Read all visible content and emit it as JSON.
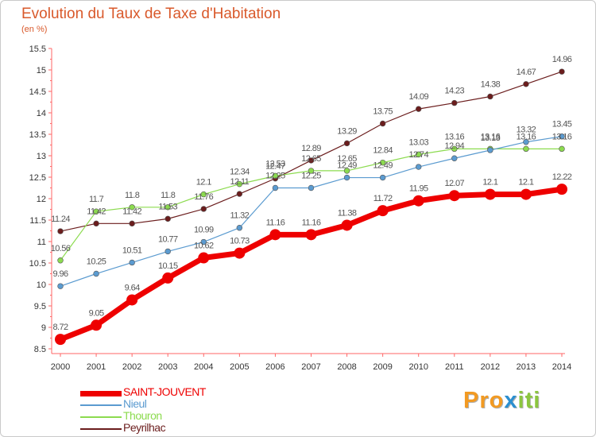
{
  "header": {
    "title": "Evolution du Taux de Taxe d'Habitation",
    "unit": "(en %)"
  },
  "logo": {
    "letters": [
      "P",
      "r",
      "o",
      "x",
      "i",
      "t",
      "i"
    ],
    "colors": [
      "#f29a22",
      "#f29a22",
      "#f29a22",
      "#2b8fd0",
      "#8cc63f",
      "#8cc63f",
      "#8cc63f"
    ]
  },
  "chart_data": {
    "type": "line",
    "title": "Evolution du Taux de Taxe d'Habitation",
    "ylabel": "(en %)",
    "xlabel": "",
    "x": [
      "2000",
      "2001",
      "2002",
      "2003",
      "2004",
      "2005",
      "2006",
      "2007",
      "2008",
      "2009",
      "2010",
      "2011",
      "2012",
      "2013",
      "2014"
    ],
    "ylim": [
      8.5,
      15.5
    ],
    "yticks": [
      "8.5",
      "9",
      "9.5",
      "10",
      "10.5",
      "11",
      "11.5",
      "12",
      "12.5",
      "13",
      "13.5",
      "14",
      "14.5",
      "15",
      "15.5"
    ],
    "grid": false,
    "legend": "bottom-left",
    "series": [
      {
        "name": "Peyrilhac",
        "color": "#6b1d1d",
        "width": 1.2,
        "values": [
          11.24,
          11.42,
          11.42,
          11.53,
          11.76,
          12.11,
          12.47,
          12.89,
          13.29,
          13.75,
          14.09,
          14.23,
          14.38,
          14.67,
          14.96
        ],
        "labels": [
          "11.24",
          "11.42",
          "11.42",
          "11.53",
          "11.76",
          "12.11",
          "12.47",
          "12.89",
          "13.29",
          "13.75",
          "14.09",
          "14.23",
          "14.38",
          "14.67",
          "14.96"
        ]
      },
      {
        "name": "Thouron",
        "color": "#8cdb4f",
        "width": 1.2,
        "values": [
          10.56,
          11.7,
          11.8,
          11.8,
          12.1,
          12.34,
          12.53,
          12.65,
          12.65,
          12.84,
          13.03,
          13.16,
          13.16,
          13.16,
          13.16
        ],
        "labels": [
          "10.56",
          "11.7",
          "11.8",
          "11.8",
          "12.1",
          "12.34",
          "12.53",
          "12.65",
          "12.65",
          "12.84",
          "13.03",
          "13.16",
          "13.16",
          "13.16",
          "13.16"
        ]
      },
      {
        "name": "Nieul",
        "color": "#5b9bd0",
        "width": 1.2,
        "values": [
          9.96,
          10.25,
          10.51,
          10.77,
          10.99,
          11.32,
          12.25,
          12.25,
          12.49,
          12.49,
          12.74,
          12.94,
          13.13,
          13.32,
          13.45
        ],
        "labels": [
          "9.96",
          "10.25",
          "10.51",
          "10.77",
          "10.99",
          "11.32",
          "12.25",
          "12.25",
          "12.49",
          "12.49",
          "12.74",
          "12.94",
          "13.13",
          "13.32",
          "13.45"
        ]
      },
      {
        "name": "SAINT-JOUVENT",
        "color": "#ee0000",
        "width": 7,
        "values": [
          8.72,
          9.05,
          9.64,
          10.15,
          10.62,
          10.73,
          11.16,
          11.16,
          11.38,
          11.72,
          11.95,
          12.07,
          12.1,
          12.1,
          12.22
        ],
        "labels": [
          "8.72",
          "9.05",
          "9.64",
          "10.15",
          "10.62",
          "10.73",
          "11.16",
          "11.16",
          "11.38",
          "11.72",
          "11.95",
          "12.07",
          "12.1",
          "12.1",
          "12.22"
        ]
      }
    ]
  },
  "legend": {
    "items": [
      {
        "name": "SAINT-JOUVENT",
        "color": "#ee0000",
        "thickness": 7
      },
      {
        "name": "Nieul",
        "color": "#5b9bd0",
        "thickness": 2
      },
      {
        "name": "Thouron",
        "color": "#8cdb4f",
        "thickness": 2
      },
      {
        "name": "Peyrilhac",
        "color": "#6b1d1d",
        "thickness": 2
      }
    ]
  }
}
